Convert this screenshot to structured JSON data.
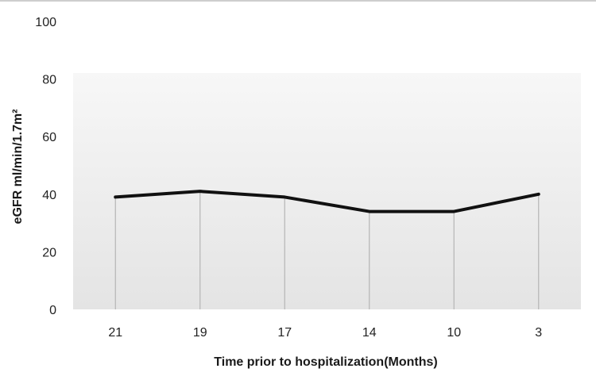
{
  "chart_data": {
    "type": "line",
    "categories": [
      "21",
      "19",
      "17",
      "14",
      "10",
      "3"
    ],
    "series": [
      {
        "values": [
          39,
          41,
          39,
          34,
          34,
          40
        ]
      }
    ],
    "xlabel": "Time prior to hospitalization(Months)",
    "ylabel": "eGFR ml/min/1.7m²",
    "ylim": [
      0,
      100
    ],
    "yticks": [
      0,
      20,
      40,
      60,
      80,
      100
    ],
    "drop_lines": true,
    "grid": false,
    "legend": "none",
    "colors": {
      "line": "#111111",
      "drop_line": "#b5b5b5",
      "plot_background_top": "#f7f7f7",
      "plot_background_bottom": "#e4e4e4",
      "top_border": "#bdbdbd"
    }
  }
}
